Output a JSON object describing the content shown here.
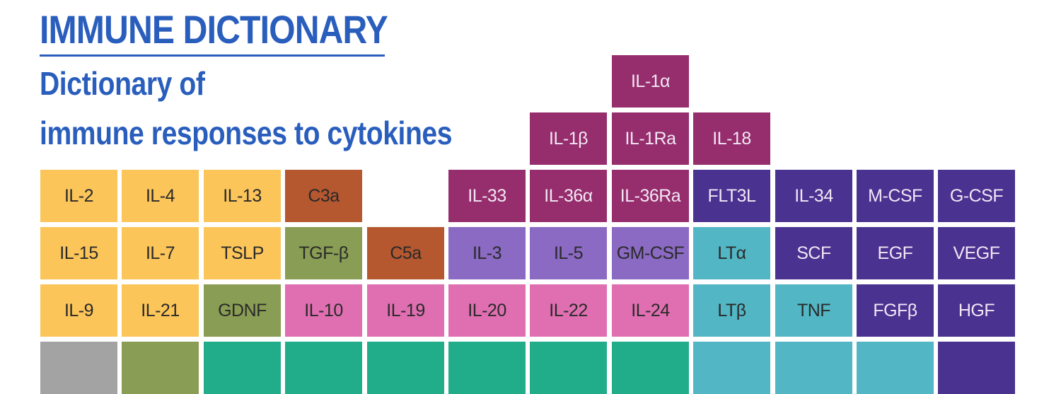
{
  "header": {
    "title": "IMMUNE DICTIONARY",
    "subtitle_line1": "Dictionary of",
    "subtitle_line2": "immune responses to cytokines"
  },
  "colors": {
    "title_blue": "#2a5ebd",
    "yellow": "#fbc55a",
    "brown_orange": "#b5572f",
    "olive_green": "#8a9d54",
    "magenta_plum": "#962d6c",
    "lavender": "#8a6ac2",
    "pink": "#df6fb1",
    "teal": "#52b6c4",
    "deep_purple": "#4a3290",
    "grey": "#a3a3a3",
    "sea_green": "#22ad8a",
    "text_dark": "#2a2a2a",
    "text_light": "#f2e7f5"
  },
  "cells": [
    {
      "label": "IL-1α",
      "row": 0,
      "col": 7,
      "color": "#962d6c",
      "text": "#f2e7f5"
    },
    {
      "label": "IL-1β",
      "row": 1,
      "col": 6,
      "color": "#962d6c",
      "text": "#f2e7f5"
    },
    {
      "label": "IL-1Ra",
      "row": 1,
      "col": 7,
      "color": "#962d6c",
      "text": "#f2e7f5"
    },
    {
      "label": "IL-18",
      "row": 1,
      "col": 8,
      "color": "#962d6c",
      "text": "#f2e7f5"
    },
    {
      "label": "IL-2",
      "row": 2,
      "col": 0,
      "color": "#fbc55a",
      "text": "#2a2a2a"
    },
    {
      "label": "IL-4",
      "row": 2,
      "col": 1,
      "color": "#fbc55a",
      "text": "#2a2a2a"
    },
    {
      "label": "IL-13",
      "row": 2,
      "col": 2,
      "color": "#fbc55a",
      "text": "#2a2a2a"
    },
    {
      "label": "C3a",
      "row": 2,
      "col": 3,
      "color": "#b5572f",
      "text": "#2a2a2a"
    },
    {
      "label": "IL-33",
      "row": 2,
      "col": 5,
      "color": "#962d6c",
      "text": "#f2e7f5"
    },
    {
      "label": "IL-36α",
      "row": 2,
      "col": 6,
      "color": "#962d6c",
      "text": "#f2e7f5"
    },
    {
      "label": "IL-36Ra",
      "row": 2,
      "col": 7,
      "color": "#962d6c",
      "text": "#f2e7f5"
    },
    {
      "label": "FLT3L",
      "row": 2,
      "col": 8,
      "color": "#4a3290",
      "text": "#f2e7f5"
    },
    {
      "label": "IL-34",
      "row": 2,
      "col": 9,
      "color": "#4a3290",
      "text": "#f2e7f5"
    },
    {
      "label": "M-CSF",
      "row": 2,
      "col": 10,
      "color": "#4a3290",
      "text": "#f2e7f5"
    },
    {
      "label": "G-CSF",
      "row": 2,
      "col": 11,
      "color": "#4a3290",
      "text": "#f2e7f5"
    },
    {
      "label": "IL-15",
      "row": 3,
      "col": 0,
      "color": "#fbc55a",
      "text": "#2a2a2a"
    },
    {
      "label": "IL-7",
      "row": 3,
      "col": 1,
      "color": "#fbc55a",
      "text": "#2a2a2a"
    },
    {
      "label": "TSLP",
      "row": 3,
      "col": 2,
      "color": "#fbc55a",
      "text": "#2a2a2a"
    },
    {
      "label": "TGF-β",
      "row": 3,
      "col": 3,
      "color": "#8a9d54",
      "text": "#2a2a2a"
    },
    {
      "label": "C5a",
      "row": 3,
      "col": 4,
      "color": "#b5572f",
      "text": "#2a2a2a"
    },
    {
      "label": "IL-3",
      "row": 3,
      "col": 5,
      "color": "#8a6ac2",
      "text": "#2a2a2a"
    },
    {
      "label": "IL-5",
      "row": 3,
      "col": 6,
      "color": "#8a6ac2",
      "text": "#2a2a2a"
    },
    {
      "label": "GM-CSF",
      "row": 3,
      "col": 7,
      "color": "#8a6ac2",
      "text": "#2a2a2a"
    },
    {
      "label": "LTα",
      "row": 3,
      "col": 8,
      "color": "#52b6c4",
      "text": "#2a2a2a"
    },
    {
      "label": "SCF",
      "row": 3,
      "col": 9,
      "color": "#4a3290",
      "text": "#f2e7f5"
    },
    {
      "label": "EGF",
      "row": 3,
      "col": 10,
      "color": "#4a3290",
      "text": "#f2e7f5"
    },
    {
      "label": "VEGF",
      "row": 3,
      "col": 11,
      "color": "#4a3290",
      "text": "#f2e7f5"
    },
    {
      "label": "IL-9",
      "row": 4,
      "col": 0,
      "color": "#fbc55a",
      "text": "#2a2a2a"
    },
    {
      "label": "IL-21",
      "row": 4,
      "col": 1,
      "color": "#fbc55a",
      "text": "#2a2a2a"
    },
    {
      "label": "GDNF",
      "row": 4,
      "col": 2,
      "color": "#8a9d54",
      "text": "#2a2a2a"
    },
    {
      "label": "IL-10",
      "row": 4,
      "col": 3,
      "color": "#df6fb1",
      "text": "#2a2a2a"
    },
    {
      "label": "IL-19",
      "row": 4,
      "col": 4,
      "color": "#df6fb1",
      "text": "#2a2a2a"
    },
    {
      "label": "IL-20",
      "row": 4,
      "col": 5,
      "color": "#df6fb1",
      "text": "#2a2a2a"
    },
    {
      "label": "IL-22",
      "row": 4,
      "col": 6,
      "color": "#df6fb1",
      "text": "#2a2a2a"
    },
    {
      "label": "IL-24",
      "row": 4,
      "col": 7,
      "color": "#df6fb1",
      "text": "#2a2a2a"
    },
    {
      "label": "LTβ",
      "row": 4,
      "col": 8,
      "color": "#52b6c4",
      "text": "#2a2a2a"
    },
    {
      "label": "TNF",
      "row": 4,
      "col": 9,
      "color": "#52b6c4",
      "text": "#2a2a2a"
    },
    {
      "label": "FGFβ",
      "row": 4,
      "col": 10,
      "color": "#4a3290",
      "text": "#f2e7f5"
    },
    {
      "label": "HGF",
      "row": 4,
      "col": 11,
      "color": "#4a3290",
      "text": "#f2e7f5"
    },
    {
      "label": "",
      "row": 5,
      "col": 0,
      "color": "#a3a3a3",
      "text": "#2a2a2a"
    },
    {
      "label": "",
      "row": 5,
      "col": 1,
      "color": "#8a9d54",
      "text": "#2a2a2a"
    },
    {
      "label": "",
      "row": 5,
      "col": 2,
      "color": "#22ad8a",
      "text": "#2a2a2a"
    },
    {
      "label": "",
      "row": 5,
      "col": 3,
      "color": "#22ad8a",
      "text": "#2a2a2a"
    },
    {
      "label": "",
      "row": 5,
      "col": 4,
      "color": "#22ad8a",
      "text": "#2a2a2a"
    },
    {
      "label": "",
      "row": 5,
      "col": 5,
      "color": "#22ad8a",
      "text": "#2a2a2a"
    },
    {
      "label": "",
      "row": 5,
      "col": 6,
      "color": "#22ad8a",
      "text": "#2a2a2a"
    },
    {
      "label": "",
      "row": 5,
      "col": 7,
      "color": "#22ad8a",
      "text": "#2a2a2a"
    },
    {
      "label": "",
      "row": 5,
      "col": 8,
      "color": "#52b6c4",
      "text": "#2a2a2a"
    },
    {
      "label": "",
      "row": 5,
      "col": 9,
      "color": "#52b6c4",
      "text": "#2a2a2a"
    },
    {
      "label": "",
      "row": 5,
      "col": 10,
      "color": "#52b6c4",
      "text": "#2a2a2a"
    },
    {
      "label": "",
      "row": 5,
      "col": 11,
      "color": "#4a3290",
      "text": "#f2e7f5"
    }
  ]
}
